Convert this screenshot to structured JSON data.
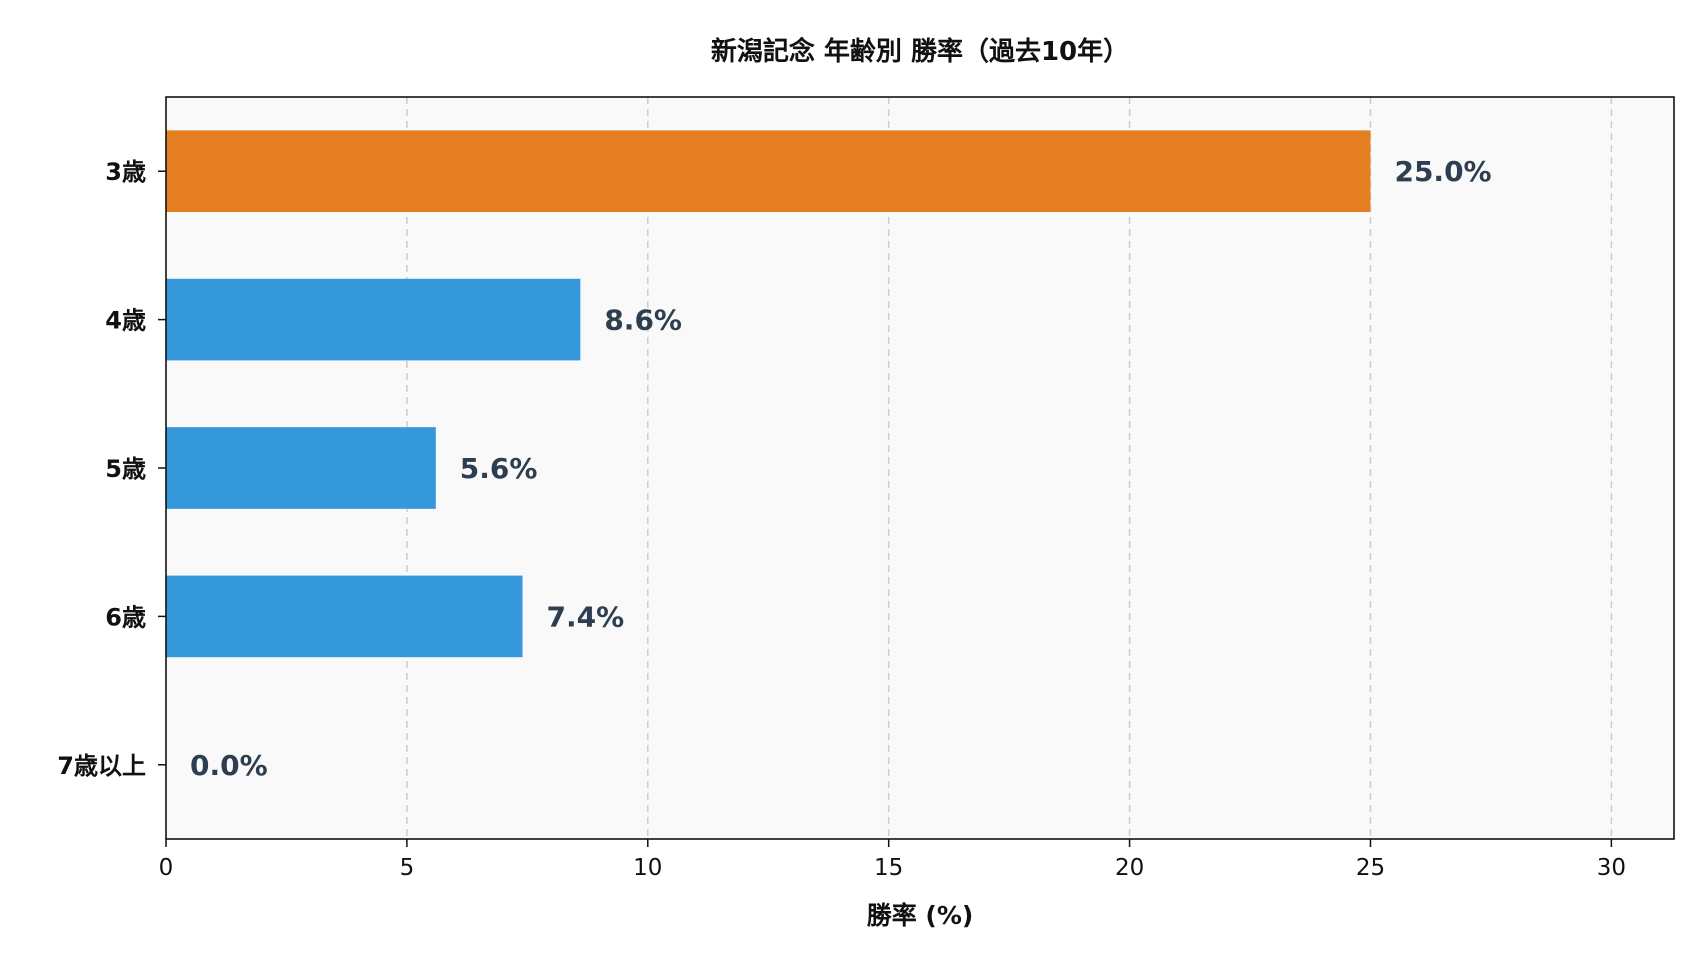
{
  "chart_data": {
    "type": "bar",
    "orientation": "horizontal",
    "title": "新潟記念 年齢別 勝率（過去10年）",
    "xlabel": "勝率 (%)",
    "ylabel": "",
    "categories": [
      "3歳",
      "4歳",
      "5歳",
      "6歳",
      "7歳以上"
    ],
    "values": [
      25.0,
      8.6,
      5.6,
      7.4,
      0.0
    ],
    "data_labels": [
      "25.0%",
      "8.6%",
      "5.6%",
      "7.4%",
      "0.0%"
    ],
    "bar_colors": [
      "#e67e22",
      "#3498db",
      "#3498db",
      "#3498db",
      "#3498db"
    ],
    "xlim": [
      0,
      31.3
    ],
    "xticks": [
      0,
      5,
      10,
      15,
      20,
      25,
      30
    ],
    "grid": "x-dashed",
    "plot_background": "#f9f9f9",
    "label_color": "#2c3e50"
  }
}
